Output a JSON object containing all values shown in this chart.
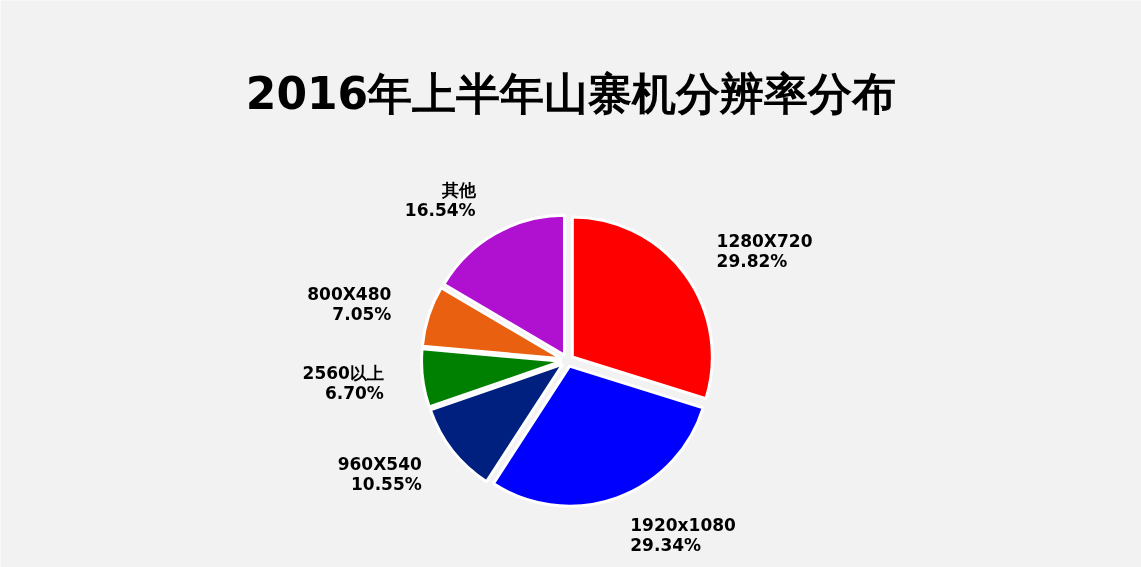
{
  "chart_data": {
    "type": "pie",
    "title": "2016年上半年山寨机分辨率分布",
    "categories": [
      "1280X720",
      "1920x1080",
      "960X540",
      "2560以上",
      "800X480",
      "其他"
    ],
    "values": [
      29.82,
      29.34,
      10.55,
      6.7,
      7.05,
      16.54
    ],
    "value_labels": [
      "29.82%",
      "29.34%",
      "10.55%",
      "6.70%",
      "7.05%",
      "16.54%"
    ],
    "colors": [
      "#ff0000",
      "#0000ff",
      "#002080",
      "#008000",
      "#e86010",
      "#b010d0"
    ]
  }
}
